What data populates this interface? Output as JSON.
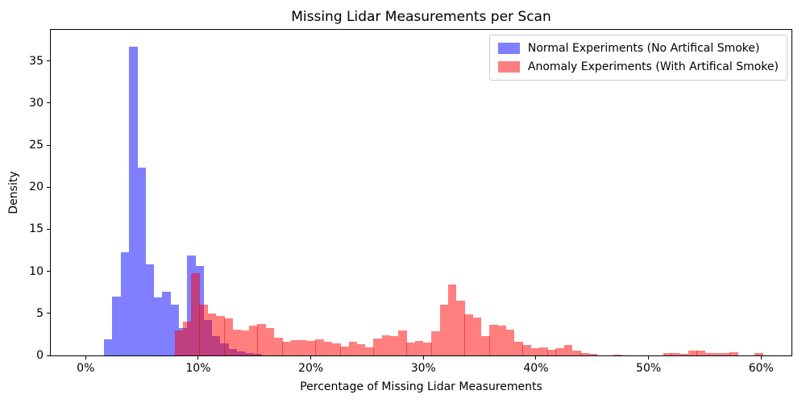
{
  "figure": {
    "title": "Missing Lidar Measurements per Scan",
    "xlabel": "Percentage of Missing Lidar Measurements",
    "ylabel": "Density"
  },
  "legend": {
    "entries": [
      {
        "label": "Normal Experiments (No Artifical Smoke)",
        "swatch_color": "#7f7fff"
      },
      {
        "label": "Anomaly Experiments (With Artifical Smoke)",
        "swatch_color": "#fa8080"
      }
    ],
    "position": "upper-right"
  },
  "axes": {
    "xlim_pct": [
      -3.1,
      62.7
    ],
    "ylim": [
      0,
      38.7
    ],
    "x_ticks": [
      {
        "value": 0,
        "label": "0%"
      },
      {
        "value": 10,
        "label": "10%"
      },
      {
        "value": 20,
        "label": "20%"
      },
      {
        "value": 30,
        "label": "30%"
      },
      {
        "value": 40,
        "label": "40%"
      },
      {
        "value": 50,
        "label": "50%"
      },
      {
        "value": 60,
        "label": "60%"
      }
    ],
    "y_ticks": [
      {
        "value": 0,
        "label": "0"
      },
      {
        "value": 5,
        "label": "5"
      },
      {
        "value": 10,
        "label": "10"
      },
      {
        "value": 15,
        "label": "15"
      },
      {
        "value": 20,
        "label": "20"
      },
      {
        "value": 25,
        "label": "25"
      },
      {
        "value": 30,
        "label": "30"
      },
      {
        "value": 35,
        "label": "35"
      }
    ],
    "grid": false
  },
  "chart_data": {
    "type": "bar",
    "subtype": "overlaid-density-histogram",
    "title": "Missing Lidar Measurements per Scan",
    "xlabel": "Percentage of Missing Lidar Measurements",
    "ylabel": "Density",
    "x_unit": "percent",
    "xlim": [
      -3.1,
      62.7
    ],
    "ylim": [
      0,
      38.7
    ],
    "legend_position": "upper right",
    "series": [
      {
        "name": "Normal Experiments (No Artifical Smoke)",
        "base_color": "#0000ff",
        "alpha": 0.5,
        "css_fill": "#7f7fff",
        "bin_start_pct": 1.64,
        "bin_width_pct": 0.736,
        "densities": [
          1.9,
          7.0,
          12.3,
          36.7,
          22.3,
          10.8,
          6.9,
          7.6,
          6.0,
          3.3,
          11.9,
          10.6,
          4.2,
          2.3,
          1.4,
          0.8,
          0.5,
          0.3,
          0.15
        ]
      },
      {
        "name": "Anomaly Experiments (With Artifical Smoke)",
        "base_color": "#ff0000",
        "alpha": 0.5,
        "css_fill": "rgba(255,0,0,0.5)",
        "bin_start_pct": 7.9,
        "bin_width_pct": 0.736,
        "densities": [
          3.0,
          4.0,
          9.8,
          6.0,
          5.0,
          4.7,
          4.4,
          3.1,
          3.0,
          3.5,
          3.7,
          3.3,
          2.1,
          1.65,
          1.85,
          1.85,
          1.75,
          1.95,
          1.65,
          1.45,
          1.1,
          1.6,
          1.35,
          0.95,
          2.0,
          2.4,
          2.3,
          3.0,
          1.5,
          1.7,
          1.5,
          2.9,
          6.0,
          8.4,
          6.5,
          4.9,
          4.5,
          2.3,
          3.65,
          3.5,
          3.1,
          1.6,
          1.2,
          0.9,
          1.0,
          0.7,
          0.9,
          1.2,
          0.6,
          0.3,
          0.2,
          0,
          0,
          0.1,
          0,
          0,
          0,
          0,
          0,
          0.25,
          0.3,
          0.2,
          0.55,
          0.6,
          0.25,
          0.25,
          0.3,
          0.35,
          0,
          0,
          0.3
        ]
      }
    ]
  }
}
